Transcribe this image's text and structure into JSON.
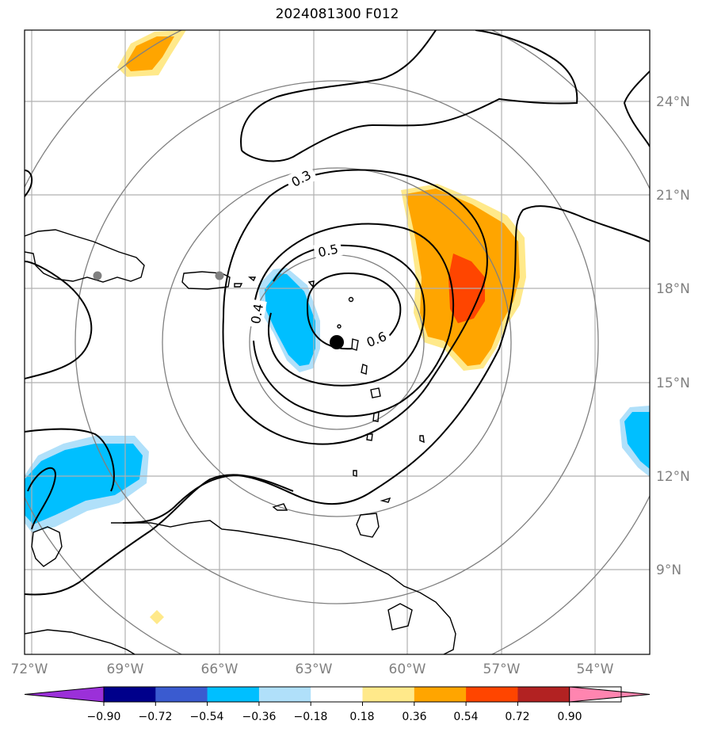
{
  "title": "2024081300 F012",
  "lon_ticks": [
    "72°W",
    "69°W",
    "66°W",
    "63°W",
    "60°W",
    "57°W",
    "54°W"
  ],
  "lat_ticks": [
    "24°N",
    "21°N",
    "18°N",
    "15°N",
    "12°N",
    "9°N"
  ],
  "contour_labels": [
    "0.3",
    "0.5",
    "0.4",
    "0.6"
  ],
  "colorbar": {
    "ticks": [
      "−0.90",
      "−0.72",
      "−0.54",
      "−0.36",
      "−0.18",
      "0.18",
      "0.36",
      "0.54",
      "0.72",
      "0.90"
    ],
    "colors": [
      "#9b30d9",
      "#00008b",
      "#3a5bd0",
      "#00bfff",
      "#b0e0fa",
      "#ffffff",
      "#ffe98a",
      "#ffa500",
      "#ff4500",
      "#b22222",
      "#ff85b0"
    ]
  },
  "colors": {
    "grid": "#b0b0b0",
    "range_rings": "#808080",
    "contours": "#000000",
    "center_marker": "#000000",
    "city_markers": "#808080"
  }
}
